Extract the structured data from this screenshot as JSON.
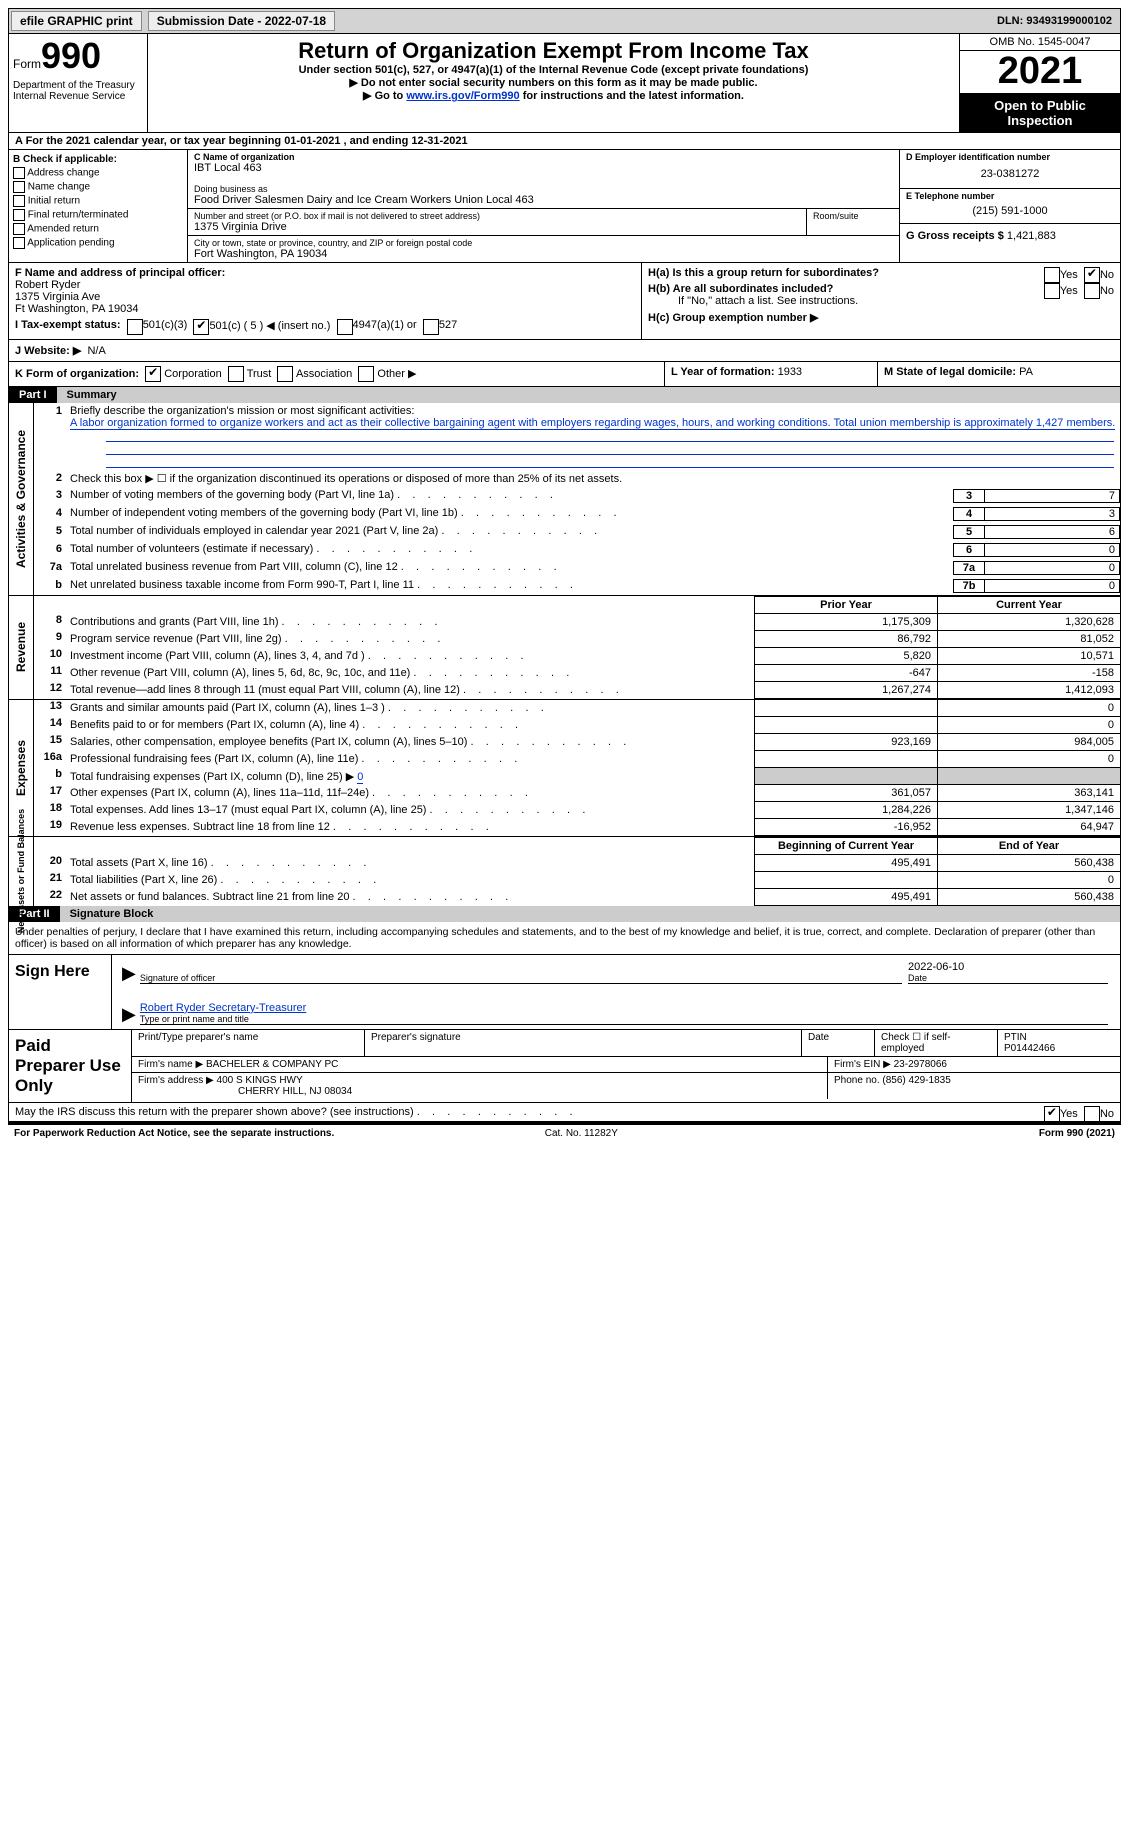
{
  "top_bar": {
    "efile_label": "efile GRAPHIC print",
    "sub_label": "Submission Date - 2022-07-18",
    "dln": "DLN: 93493199000102"
  },
  "header": {
    "form_word": "Form",
    "form_num": "990",
    "dept": "Department of the Treasury\nInternal Revenue Service",
    "title": "Return of Organization Exempt From Income Tax",
    "subtitle": "Under section 501(c), 527, or 4947(a)(1) of the Internal Revenue Code (except private foundations)",
    "instr1": "▶ Do not enter social security numbers on this form as it may be made public.",
    "instr2_pre": "▶ Go to ",
    "instr2_link": "www.irs.gov/Form990",
    "instr2_post": " for instructions and the latest information.",
    "omb": "OMB No. 1545-0047",
    "year": "2021",
    "open": "Open to Public Inspection"
  },
  "row_a": "A For the 2021 calendar year, or tax year beginning 01-01-2021   , and ending 12-31-2021",
  "col_b": {
    "label": "B Check if applicable:",
    "opts": [
      "Address change",
      "Name change",
      "Initial return",
      "Final return/terminated",
      "Amended return",
      "Application pending"
    ]
  },
  "col_c": {
    "c_label": "C Name of organization",
    "c_name": "IBT Local 463",
    "dba_label": "Doing business as",
    "dba": "Food Driver Salesmen Dairy and Ice Cream Workers Union Local 463",
    "street_label": "Number and street (or P.O. box if mail is not delivered to street address)",
    "street": "1375 Virginia Drive",
    "room_label": "Room/suite",
    "city_label": "City or town, state or province, country, and ZIP or foreign postal code",
    "city": "Fort Washington, PA  19034"
  },
  "col_d": {
    "label": "D Employer identification number",
    "ein": "23-0381272",
    "e_label": "E Telephone number",
    "phone": "(215) 591-1000",
    "g_label": "G Gross receipts $",
    "g_val": "1,421,883"
  },
  "fgh": {
    "f_label": "F Name and address of principal officer:",
    "f_name": "Robert Ryder",
    "f_addr1": "1375 Virginia Ave",
    "f_addr2": "Ft Washington, PA  19034",
    "h_a": "H(a)  Is this a group return for subordinates?",
    "h_b": "H(b)  Are all subordinates included?",
    "h_b_note": "If \"No,\" attach a list. See instructions.",
    "h_c": "H(c)  Group exemption number ▶",
    "yes": "Yes",
    "no": "No"
  },
  "row_i": {
    "label": "I  Tax-exempt status:",
    "opts": [
      "501(c)(3)",
      "501(c) ( 5 ) ◀ (insert no.)",
      "4947(a)(1) or",
      "527"
    ]
  },
  "row_j": {
    "label": "J  Website: ▶",
    "val": "N/A"
  },
  "row_k": {
    "label": "K Form of organization:",
    "opts": [
      "Corporation",
      "Trust",
      "Association",
      "Other ▶"
    ],
    "l_label": "L Year of formation:",
    "l_val": "1933",
    "m_label": "M State of legal domicile:",
    "m_val": "PA"
  },
  "part1": {
    "label": "Part I",
    "title": "Summary"
  },
  "activities": {
    "vlabel": "Activities & Governance",
    "l1_label": "Briefly describe the organization's mission or most significant activities:",
    "l1_text": "A labor organization formed to organize workers and act as their collective bargaining agent with employers regarding wages, hours, and working conditions. Total union membership is approximately 1,427 members.",
    "l2": "Check this box ▶ ☐  if the organization discontinued its operations or disposed of more than 25% of its net assets.",
    "lines": [
      {
        "n": "3",
        "t": "Number of voting members of the governing body (Part VI, line 1a)",
        "box": "3",
        "val": "7"
      },
      {
        "n": "4",
        "t": "Number of independent voting members of the governing body (Part VI, line 1b)",
        "box": "4",
        "val": "3"
      },
      {
        "n": "5",
        "t": "Total number of individuals employed in calendar year 2021 (Part V, line 2a)",
        "box": "5",
        "val": "6"
      },
      {
        "n": "6",
        "t": "Total number of volunteers (estimate if necessary)",
        "box": "6",
        "val": "0"
      },
      {
        "n": "7a",
        "t": "Total unrelated business revenue from Part VIII, column (C), line 12",
        "box": "7a",
        "val": "0"
      },
      {
        "n": "b",
        "t": "Net unrelated business taxable income from Form 990-T, Part I, line 11",
        "box": "7b",
        "val": "0"
      }
    ]
  },
  "cols_header": {
    "prior": "Prior Year",
    "current": "Current Year"
  },
  "revenue": {
    "vlabel": "Revenue",
    "lines": [
      {
        "n": "8",
        "t": "Contributions and grants (Part VIII, line 1h)",
        "p": "1,175,309",
        "c": "1,320,628"
      },
      {
        "n": "9",
        "t": "Program service revenue (Part VIII, line 2g)",
        "p": "86,792",
        "c": "81,052"
      },
      {
        "n": "10",
        "t": "Investment income (Part VIII, column (A), lines 3, 4, and 7d )",
        "p": "5,820",
        "c": "10,571"
      },
      {
        "n": "11",
        "t": "Other revenue (Part VIII, column (A), lines 5, 6d, 8c, 9c, 10c, and 11e)",
        "p": "-647",
        "c": "-158"
      },
      {
        "n": "12",
        "t": "Total revenue—add lines 8 through 11 (must equal Part VIII, column (A), line 12)",
        "p": "1,267,274",
        "c": "1,412,093"
      }
    ]
  },
  "expenses": {
    "vlabel": "Expenses",
    "lines_top": [
      {
        "n": "13",
        "t": "Grants and similar amounts paid (Part IX, column (A), lines 1–3 )",
        "p": "",
        "c": "0"
      },
      {
        "n": "14",
        "t": "Benefits paid to or for members (Part IX, column (A), line 4)",
        "p": "",
        "c": "0"
      },
      {
        "n": "15",
        "t": "Salaries, other compensation, employee benefits (Part IX, column (A), lines 5–10)",
        "p": "923,169",
        "c": "984,005"
      },
      {
        "n": "16a",
        "t": "Professional fundraising fees (Part IX, column (A), line 11e)",
        "p": "",
        "c": "0"
      }
    ],
    "l16b_pre": "Total fundraising expenses (Part IX, column (D), line 25) ▶",
    "l16b_val": "0",
    "lines_bot": [
      {
        "n": "17",
        "t": "Other expenses (Part IX, column (A), lines 11a–11d, 11f–24e)",
        "p": "361,057",
        "c": "363,141"
      },
      {
        "n": "18",
        "t": "Total expenses. Add lines 13–17 (must equal Part IX, column (A), line 25)",
        "p": "1,284,226",
        "c": "1,347,146"
      },
      {
        "n": "19",
        "t": "Revenue less expenses. Subtract line 18 from line 12",
        "p": "-16,952",
        "c": "64,947"
      }
    ]
  },
  "netassets": {
    "vlabel": "Net Assets or Fund Balances",
    "header": {
      "begin": "Beginning of Current Year",
      "end": "End of Year"
    },
    "lines": [
      {
        "n": "20",
        "t": "Total assets (Part X, line 16)",
        "p": "495,491",
        "c": "560,438"
      },
      {
        "n": "21",
        "t": "Total liabilities (Part X, line 26)",
        "p": "",
        "c": "0"
      },
      {
        "n": "22",
        "t": "Net assets or fund balances. Subtract line 21 from line 20",
        "p": "495,491",
        "c": "560,438"
      }
    ]
  },
  "part2": {
    "label": "Part II",
    "title": "Signature Block"
  },
  "sig": {
    "declaration": "Under penalties of perjury, I declare that I have examined this return, including accompanying schedules and statements, and to the best of my knowledge and belief, it is true, correct, and complete. Declaration of preparer (other than officer) is based on all information of which preparer has any knowledge.",
    "sign_here": "Sign Here",
    "sig_officer": "Signature of officer",
    "date": "2022-06-10",
    "date_lbl": "Date",
    "name": "Robert Ryder  Secretary-Treasurer",
    "name_lbl": "Type or print name and title"
  },
  "prep": {
    "label": "Paid Preparer Use Only",
    "h1": "Print/Type preparer's name",
    "h2": "Preparer's signature",
    "h3": "Date",
    "h4_pre": "Check ☐ if self-employed",
    "h5": "PTIN",
    "ptin": "P01442466",
    "firm_label": "Firm's name    ▶",
    "firm": "BACHELER & COMPANY PC",
    "ein_label": "Firm's EIN ▶",
    "ein": "23-2978066",
    "addr_label": "Firm's address ▶",
    "addr1": "400 S KINGS HWY",
    "addr2": "CHERRY HILL, NJ  08034",
    "phone_label": "Phone no.",
    "phone": "(856) 429-1835"
  },
  "discuss": "May the IRS discuss this return with the preparer shown above? (see instructions)",
  "footer": {
    "left": "For Paperwork Reduction Act Notice, see the separate instructions.",
    "mid": "Cat. No. 11282Y",
    "right": "Form 990 (2021)"
  },
  "colors": {
    "link": "#0033cc",
    "grey": "#cccccc"
  }
}
